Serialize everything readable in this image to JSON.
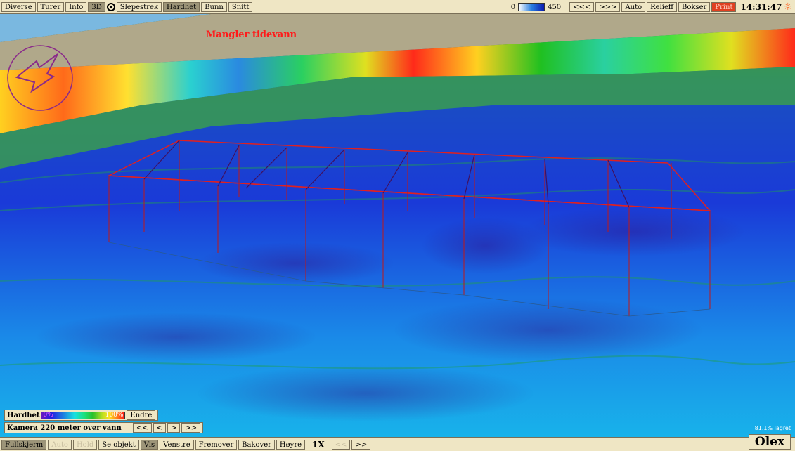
{
  "topbar": {
    "left": [
      {
        "label": "Diverse",
        "state": "normal"
      },
      {
        "label": "Turer",
        "state": "normal"
      },
      {
        "label": "Info",
        "state": "normal"
      },
      {
        "label": "3D",
        "state": "on"
      },
      {
        "icon": "target-icon"
      },
      {
        "label": "Slepestrek",
        "state": "normal"
      },
      {
        "label": "Hardhet",
        "state": "on"
      },
      {
        "label": "Bunn",
        "state": "normal"
      },
      {
        "label": "Snitt",
        "state": "normal"
      }
    ],
    "depth_scale": {
      "min": "0",
      "max": "450"
    },
    "right": [
      {
        "label": "<<<",
        "state": "normal"
      },
      {
        "label": ">>>",
        "state": "normal"
      },
      {
        "label": "Auto",
        "state": "normal"
      },
      {
        "label": "Relieff",
        "state": "normal"
      },
      {
        "label": "Bokser",
        "state": "normal"
      },
      {
        "label": "Print",
        "state": "red"
      }
    ],
    "clock": "14:31:47"
  },
  "message": "Mangler tidevann",
  "panel": {
    "hardness_label": "Hardhet",
    "legend_min": "0%",
    "legend_max": "100%",
    "change_button": "Endre",
    "camera_text": "Kamera 220 meter over vann",
    "camera_buttons": [
      "<<",
      "<",
      ">",
      ">>"
    ]
  },
  "bottombar": {
    "buttons": [
      {
        "label": "Fullskjerm",
        "state": "on"
      },
      {
        "label": "Auto",
        "state": "dis"
      },
      {
        "label": "Hold",
        "state": "dis"
      },
      {
        "label": "Se objekt",
        "state": "normal"
      },
      {
        "label": "Vis",
        "state": "on"
      },
      {
        "label": "Venstre",
        "state": "normal"
      },
      {
        "label": "Fremover",
        "state": "normal"
      },
      {
        "label": "Bakover",
        "state": "normal"
      },
      {
        "label": "Høyre",
        "state": "normal"
      }
    ],
    "speed": "1X",
    "speed_buttons": [
      {
        "label": "<<",
        "state": "dis"
      },
      {
        "label": ">>",
        "state": "normal"
      }
    ]
  },
  "layer_text": "81.1% lagret",
  "logo": "Olex"
}
